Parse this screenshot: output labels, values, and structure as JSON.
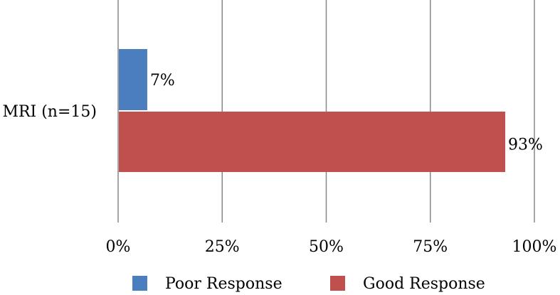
{
  "chart_data": {
    "type": "bar",
    "orientation": "horizontal",
    "title": "",
    "xlabel": "",
    "ylabel": "",
    "categories": [
      "MRI (n=15)"
    ],
    "series": [
      {
        "name": "Poor Response",
        "values": [
          7
        ],
        "color": "#4a7ebf",
        "data_labels": [
          "7%"
        ]
      },
      {
        "name": "Good Response",
        "values": [
          93
        ],
        "color": "#c0504d",
        "data_labels": [
          "93%"
        ]
      }
    ],
    "xlim": [
      0,
      100
    ],
    "x_ticks": [
      0,
      25,
      50,
      75,
      100
    ],
    "x_tick_labels": [
      "0%",
      "25%",
      "50%",
      "75%",
      "100%"
    ],
    "grid": "vertical",
    "legend_position": "bottom"
  }
}
